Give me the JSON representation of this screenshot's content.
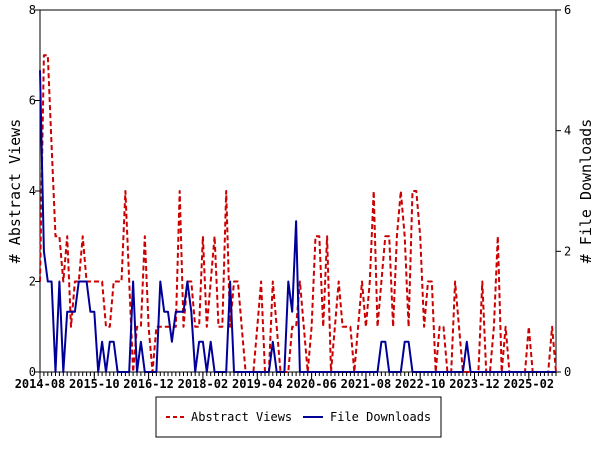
{
  "chart_data": {
    "type": "line",
    "xlabel": "",
    "ylabel": "# Abstract Views",
    "y2label": "# File Downloads",
    "ylim": [
      0,
      8
    ],
    "y2lim": [
      0,
      6
    ],
    "yticks": [
      "0",
      "2",
      "4",
      "6",
      "8"
    ],
    "y2ticks": [
      "0",
      "2",
      "4",
      "6"
    ],
    "xlim": [
      "2014-08",
      "2025-09"
    ],
    "xticks": [
      "2014-08",
      "2015-10",
      "2016-12",
      "2018-02",
      "2019-04",
      "2020-06",
      "2021-08",
      "2022-10",
      "2023-12",
      "2025-02"
    ],
    "grid": false,
    "legend_position": "bottom",
    "series": [
      {
        "name": "Abstract Views",
        "axis": "left",
        "color": "#cc0000",
        "style": "dashed",
        "points": [
          [
            "2014-08",
            2
          ],
          [
            "2014-09",
            7
          ],
          [
            "2014-10",
            7
          ],
          [
            "2014-11",
            5
          ],
          [
            "2014-12",
            3
          ],
          [
            "2015-01",
            3
          ],
          [
            "2015-02",
            2
          ],
          [
            "2015-03",
            3
          ],
          [
            "2015-04",
            1
          ],
          [
            "2015-05",
            2
          ],
          [
            "2015-06",
            2
          ],
          [
            "2015-07",
            3
          ],
          [
            "2015-08",
            2
          ],
          [
            "2015-09",
            2
          ],
          [
            "2015-10",
            2
          ],
          [
            "2015-11",
            2
          ],
          [
            "2015-12",
            2
          ],
          [
            "2016-01",
            1
          ],
          [
            "2016-02",
            1
          ],
          [
            "2016-03",
            2
          ],
          [
            "2016-04",
            2
          ],
          [
            "2016-05",
            2
          ],
          [
            "2016-06",
            4
          ],
          [
            "2016-07",
            2
          ],
          [
            "2016-08",
            0
          ],
          [
            "2016-09",
            1
          ],
          [
            "2016-10",
            1
          ],
          [
            "2016-11",
            3
          ],
          [
            "2016-12",
            1
          ],
          [
            "2017-01",
            0
          ],
          [
            "2017-02",
            1
          ],
          [
            "2017-03",
            1
          ],
          [
            "2017-04",
            1
          ],
          [
            "2017-05",
            1
          ],
          [
            "2017-06",
            1
          ],
          [
            "2017-07",
            1
          ],
          [
            "2017-08",
            4
          ],
          [
            "2017-09",
            1
          ],
          [
            "2017-10",
            2
          ],
          [
            "2017-11",
            2
          ],
          [
            "2017-12",
            1
          ],
          [
            "2018-01",
            1
          ],
          [
            "2018-02",
            3
          ],
          [
            "2018-03",
            1
          ],
          [
            "2018-04",
            2
          ],
          [
            "2018-05",
            3
          ],
          [
            "2018-06",
            1
          ],
          [
            "2018-07",
            1
          ],
          [
            "2018-08",
            4
          ],
          [
            "2018-09",
            1
          ],
          [
            "2018-10",
            2
          ],
          [
            "2018-11",
            2
          ],
          [
            "2018-12",
            1
          ],
          [
            "2019-01",
            0
          ],
          [
            "2019-02",
            0
          ],
          [
            "2019-03",
            0
          ],
          [
            "2019-04",
            1
          ],
          [
            "2019-05",
            2
          ],
          [
            "2019-06",
            0
          ],
          [
            "2019-07",
            0
          ],
          [
            "2019-08",
            2
          ],
          [
            "2019-09",
            1
          ],
          [
            "2019-10",
            0
          ],
          [
            "2019-11",
            0
          ],
          [
            "2019-12",
            0
          ],
          [
            "2020-01",
            1
          ],
          [
            "2020-02",
            1
          ],
          [
            "2020-03",
            2
          ],
          [
            "2020-04",
            1
          ],
          [
            "2020-05",
            0
          ],
          [
            "2020-06",
            1
          ],
          [
            "2020-07",
            3
          ],
          [
            "2020-08",
            3
          ],
          [
            "2020-09",
            1
          ],
          [
            "2020-10",
            3
          ],
          [
            "2020-11",
            0
          ],
          [
            "2020-12",
            1
          ],
          [
            "2021-01",
            2
          ],
          [
            "2021-02",
            1
          ],
          [
            "2021-03",
            1
          ],
          [
            "2021-04",
            1
          ],
          [
            "2021-05",
            0
          ],
          [
            "2021-06",
            1
          ],
          [
            "2021-07",
            2
          ],
          [
            "2021-08",
            1
          ],
          [
            "2021-09",
            2
          ],
          [
            "2021-10",
            4
          ],
          [
            "2021-11",
            1
          ],
          [
            "2021-12",
            2
          ],
          [
            "2022-01",
            3
          ],
          [
            "2022-02",
            3
          ],
          [
            "2022-03",
            1
          ],
          [
            "2022-04",
            3
          ],
          [
            "2022-05",
            4
          ],
          [
            "2022-06",
            3
          ],
          [
            "2022-07",
            1
          ],
          [
            "2022-08",
            4
          ],
          [
            "2022-09",
            4
          ],
          [
            "2022-10",
            3
          ],
          [
            "2022-11",
            1
          ],
          [
            "2022-12",
            2
          ],
          [
            "2023-01",
            2
          ],
          [
            "2023-02",
            0
          ],
          [
            "2023-03",
            1
          ],
          [
            "2023-04",
            1
          ],
          [
            "2023-05",
            0
          ],
          [
            "2023-06",
            0
          ],
          [
            "2023-07",
            2
          ],
          [
            "2023-08",
            1
          ],
          [
            "2023-09",
            0
          ],
          [
            "2023-10",
            0
          ],
          [
            "2023-11",
            0
          ],
          [
            "2023-12",
            0
          ],
          [
            "2024-01",
            0
          ],
          [
            "2024-02",
            2
          ],
          [
            "2024-03",
            0
          ],
          [
            "2024-04",
            0
          ],
          [
            "2024-05",
            1
          ],
          [
            "2024-06",
            3
          ],
          [
            "2024-07",
            0
          ],
          [
            "2024-08",
            1
          ],
          [
            "2024-09",
            0
          ],
          [
            "2024-10",
            0
          ],
          [
            "2024-11",
            0
          ],
          [
            "2024-12",
            0
          ],
          [
            "2025-01",
            0
          ],
          [
            "2025-02",
            1
          ],
          [
            "2025-03",
            0
          ],
          [
            "2025-04",
            0
          ],
          [
            "2025-05",
            0
          ],
          [
            "2025-06",
            0
          ],
          [
            "2025-07",
            0
          ],
          [
            "2025-08",
            1
          ],
          [
            "2025-09",
            0
          ]
        ]
      },
      {
        "name": "File Downloads",
        "axis": "right",
        "color": "#000099",
        "style": "solid",
        "points": [
          [
            "2014-08",
            5
          ],
          [
            "2014-09",
            2
          ],
          [
            "2014-10",
            1.5
          ],
          [
            "2014-11",
            1.5
          ],
          [
            "2014-12",
            0
          ],
          [
            "2015-01",
            1.5
          ],
          [
            "2015-02",
            0
          ],
          [
            "2015-03",
            1
          ],
          [
            "2015-04",
            1
          ],
          [
            "2015-05",
            1
          ],
          [
            "2015-06",
            1.5
          ],
          [
            "2015-07",
            1.5
          ],
          [
            "2015-08",
            1.5
          ],
          [
            "2015-09",
            1
          ],
          [
            "2015-10",
            1
          ],
          [
            "2015-11",
            0
          ],
          [
            "2015-12",
            0.5
          ],
          [
            "2016-01",
            0
          ],
          [
            "2016-02",
            0.5
          ],
          [
            "2016-03",
            0.5
          ],
          [
            "2016-04",
            0
          ],
          [
            "2016-05",
            0
          ],
          [
            "2016-06",
            0
          ],
          [
            "2016-07",
            0
          ],
          [
            "2016-08",
            1.5
          ],
          [
            "2016-09",
            0
          ],
          [
            "2016-10",
            0.5
          ],
          [
            "2016-11",
            0
          ],
          [
            "2016-12",
            0
          ],
          [
            "2017-01",
            0
          ],
          [
            "2017-02",
            0
          ],
          [
            "2017-03",
            1.5
          ],
          [
            "2017-04",
            1
          ],
          [
            "2017-05",
            1
          ],
          [
            "2017-06",
            0.5
          ],
          [
            "2017-07",
            1
          ],
          [
            "2017-08",
            1
          ],
          [
            "2017-09",
            1
          ],
          [
            "2017-10",
            1.5
          ],
          [
            "2017-11",
            1
          ],
          [
            "2017-12",
            0
          ],
          [
            "2018-01",
            0.5
          ],
          [
            "2018-02",
            0.5
          ],
          [
            "2018-03",
            0
          ],
          [
            "2018-04",
            0.5
          ],
          [
            "2018-05",
            0
          ],
          [
            "2018-06",
            0
          ],
          [
            "2018-07",
            0
          ],
          [
            "2018-08",
            0
          ],
          [
            "2018-09",
            1.5
          ],
          [
            "2018-10",
            0
          ],
          [
            "2018-11",
            0
          ],
          [
            "2018-12",
            0
          ],
          [
            "2019-01",
            0
          ],
          [
            "2019-02",
            0
          ],
          [
            "2019-03",
            0
          ],
          [
            "2019-04",
            0
          ],
          [
            "2019-05",
            0
          ],
          [
            "2019-06",
            0
          ],
          [
            "2019-07",
            0
          ],
          [
            "2019-08",
            0.5
          ],
          [
            "2019-09",
            0
          ],
          [
            "2019-10",
            0
          ],
          [
            "2019-11",
            0
          ],
          [
            "2019-12",
            1.5
          ],
          [
            "2020-01",
            1
          ],
          [
            "2020-02",
            2.5
          ],
          [
            "2020-03",
            0
          ],
          [
            "2020-04",
            0
          ],
          [
            "2020-05",
            0
          ],
          [
            "2020-06",
            0
          ],
          [
            "2020-07",
            0
          ],
          [
            "2020-08",
            0
          ],
          [
            "2020-09",
            0
          ],
          [
            "2020-10",
            0
          ],
          [
            "2020-11",
            0
          ],
          [
            "2020-12",
            0
          ],
          [
            "2021-01",
            0
          ],
          [
            "2021-02",
            0
          ],
          [
            "2021-03",
            0
          ],
          [
            "2021-04",
            0
          ],
          [
            "2021-05",
            0
          ],
          [
            "2021-06",
            0
          ],
          [
            "2021-07",
            0
          ],
          [
            "2021-08",
            0
          ],
          [
            "2021-09",
            0
          ],
          [
            "2021-10",
            0
          ],
          [
            "2021-11",
            0
          ],
          [
            "2021-12",
            0.5
          ],
          [
            "2022-01",
            0.5
          ],
          [
            "2022-02",
            0
          ],
          [
            "2022-03",
            0
          ],
          [
            "2022-04",
            0
          ],
          [
            "2022-05",
            0
          ],
          [
            "2022-06",
            0.5
          ],
          [
            "2022-07",
            0.5
          ],
          [
            "2022-08",
            0
          ],
          [
            "2022-09",
            0
          ],
          [
            "2022-10",
            0
          ],
          [
            "2022-11",
            0
          ],
          [
            "2022-12",
            0
          ],
          [
            "2023-01",
            0
          ],
          [
            "2023-02",
            0
          ],
          [
            "2023-03",
            0
          ],
          [
            "2023-04",
            0
          ],
          [
            "2023-05",
            0
          ],
          [
            "2023-06",
            0
          ],
          [
            "2023-07",
            0
          ],
          [
            "2023-08",
            0
          ],
          [
            "2023-09",
            0
          ],
          [
            "2023-10",
            0.5
          ],
          [
            "2023-11",
            0
          ],
          [
            "2023-12",
            0
          ],
          [
            "2024-01",
            0
          ],
          [
            "2024-02",
            0
          ],
          [
            "2024-03",
            0
          ],
          [
            "2024-04",
            0
          ],
          [
            "2024-05",
            0
          ],
          [
            "2024-06",
            0
          ],
          [
            "2024-07",
            0
          ],
          [
            "2024-08",
            0
          ],
          [
            "2024-09",
            0
          ],
          [
            "2024-10",
            0
          ],
          [
            "2024-11",
            0
          ],
          [
            "2024-12",
            0
          ],
          [
            "2025-01",
            0
          ],
          [
            "2025-02",
            0
          ],
          [
            "2025-03",
            0
          ],
          [
            "2025-04",
            0
          ],
          [
            "2025-05",
            0
          ],
          [
            "2025-06",
            0
          ],
          [
            "2025-07",
            0
          ],
          [
            "2025-08",
            0
          ],
          [
            "2025-09",
            0
          ]
        ]
      }
    ]
  }
}
